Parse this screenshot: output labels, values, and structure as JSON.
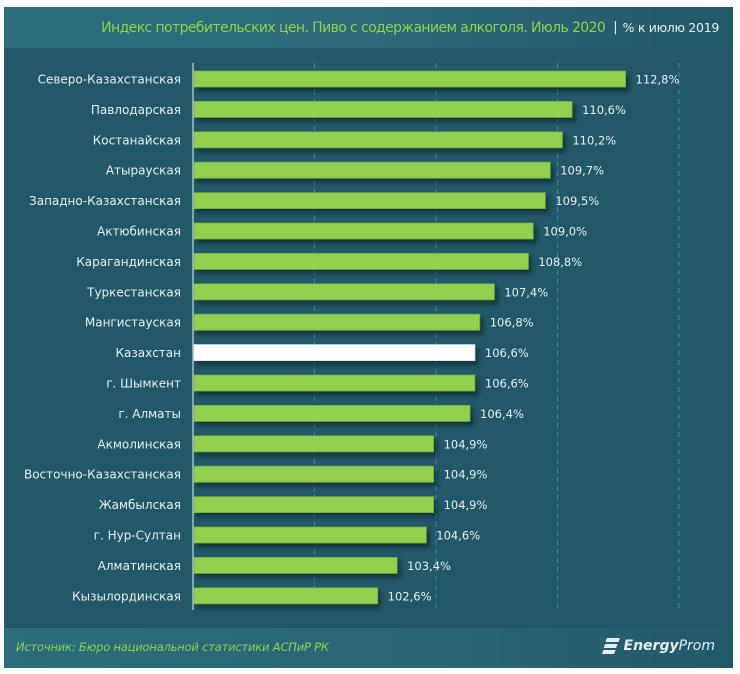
{
  "header": {
    "title": "Индекс потребительских цен. Пиво с содержанием алкоголя. Июль 2020",
    "separator": "|",
    "subtitle": "% к июлю 2019"
  },
  "footer": {
    "source": "Источник: Бюро национальной  статистики АСПиР РК",
    "brand_bold": "Energy",
    "brand_light": "Prom",
    "brand_icon": "energyprom-logo-icon"
  },
  "colors": {
    "background": "#225867",
    "bar": "#92d050",
    "highlight_bar": "#ffffff",
    "title": "#8fd24c",
    "text": "#e8eef0",
    "grid": "#3b8aa3"
  },
  "chart_data": {
    "type": "bar",
    "orientation": "horizontal",
    "title": "Индекс потребительских цен. Пиво с содержанием алкоголя. Июль 2020",
    "subtitle": "% к июлю 2019",
    "xlabel": "",
    "ylabel": "",
    "xlim": [
      95,
      115
    ],
    "gridlines": [
      100,
      105,
      110,
      115
    ],
    "grid": true,
    "value_suffix": "%",
    "decimal_separator": ",",
    "highlight_category": "Казахстан",
    "categories": [
      "Северо-Казахстанская",
      "Павлодарская",
      "Костанайская",
      "Атырауская",
      "Западно-Казахстанская",
      "Актюбинская",
      "Карагандинская",
      "Туркестанская",
      "Мангистауская",
      "Казахстан",
      "г. Шымкент",
      "г. Алматы",
      "Акмолинская",
      "Восточно-Казахстанская",
      "Жамбылская",
      "г. Нур-Султан",
      "Алматинская",
      "Кызылординская"
    ],
    "values": [
      112.8,
      110.6,
      110.2,
      109.7,
      109.5,
      109.0,
      108.8,
      107.4,
      106.8,
      106.6,
      106.6,
      106.4,
      104.9,
      104.9,
      104.9,
      104.6,
      103.4,
      102.6
    ],
    "value_labels": [
      "112,8%",
      "110,6%",
      "110,2%",
      "109,7%",
      "109,5%",
      "109,0%",
      "108,8%",
      "107,4%",
      "106,8%",
      "106,6%",
      "106,6%",
      "106,4%",
      "104,9%",
      "104,9%",
      "104,9%",
      "104,6%",
      "103,4%",
      "102,6%"
    ]
  }
}
